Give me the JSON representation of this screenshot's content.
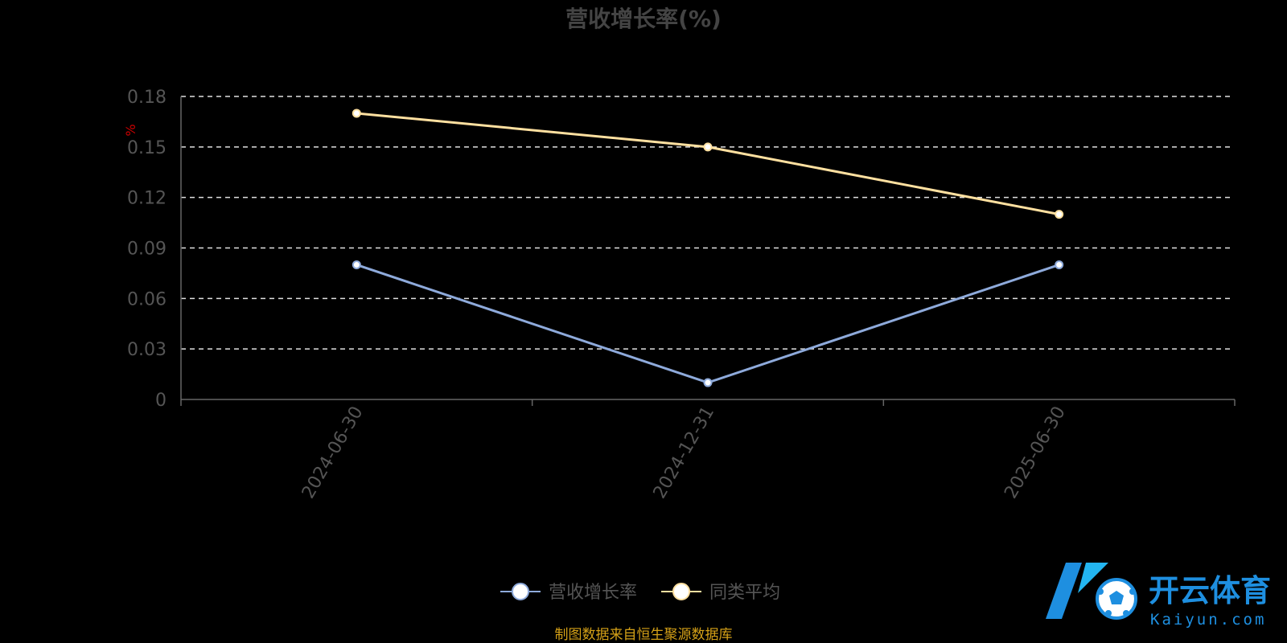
{
  "chart_data": {
    "type": "line",
    "title": "营收增长率(%)",
    "ylabel": "%",
    "categories": [
      "2024-06-30",
      "2024-12-31",
      "2025-06-30"
    ],
    "y_ticks": [
      "0",
      "0.03",
      "0.06",
      "0.09",
      "0.12",
      "0.15",
      "0.18"
    ],
    "ylim": [
      0,
      0.18
    ],
    "grid": true,
    "legend_position": "bottom-center",
    "series": [
      {
        "name": "营收增长率",
        "values": [
          0.08,
          0.01,
          0.08
        ],
        "color": "#8eaadb"
      },
      {
        "name": "同类平均",
        "values": [
          0.17,
          0.15,
          0.11
        ],
        "color": "#ffe0a0"
      }
    ]
  },
  "source_note": "制图数据来自恒生聚源数据库",
  "watermark": {
    "cn": "开云体育",
    "en": "Kaiyun.com",
    "icon": "soccer-ball-k-logo"
  }
}
